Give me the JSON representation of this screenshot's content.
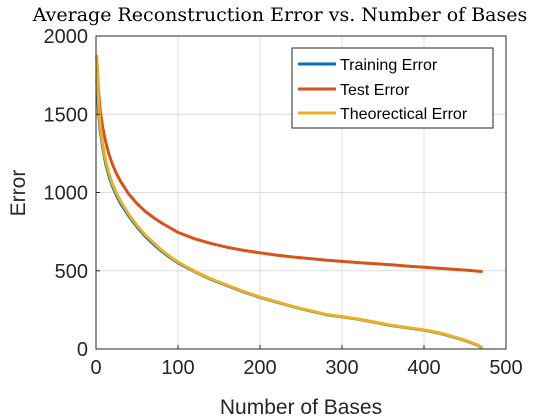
{
  "chart_data": {
    "type": "line",
    "title": "Average Reconstruction Error vs. Number of Bases",
    "xlabel": "Number of Bases",
    "ylabel": "Error",
    "xlim": [
      0,
      500
    ],
    "ylim": [
      0,
      2000
    ],
    "xticks": [
      0,
      100,
      200,
      300,
      400,
      500
    ],
    "yticks": [
      0,
      500,
      1000,
      1500,
      2000
    ],
    "grid": true,
    "legend_position": "top-right",
    "series": [
      {
        "name": "Training Error",
        "color": "#0072BD",
        "x": [
          1,
          3,
          5,
          8,
          12,
          16,
          20,
          25,
          30,
          40,
          50,
          60,
          70,
          80,
          90,
          100,
          120,
          140,
          160,
          180,
          200,
          220,
          240,
          260,
          280,
          300,
          320,
          340,
          360,
          380,
          400,
          420,
          440,
          455,
          465,
          470
        ],
        "y": [
          1720,
          1520,
          1400,
          1290,
          1180,
          1100,
          1040,
          980,
          930,
          850,
          780,
          720,
          670,
          625,
          585,
          550,
          495,
          445,
          405,
          365,
          330,
          300,
          270,
          245,
          220,
          205,
          190,
          170,
          150,
          135,
          120,
          100,
          70,
          45,
          25,
          10
        ]
      },
      {
        "name": "Test Error",
        "color": "#D95319",
        "x": [
          1,
          3,
          5,
          8,
          12,
          16,
          20,
          25,
          30,
          40,
          50,
          60,
          70,
          80,
          90,
          100,
          120,
          140,
          160,
          180,
          200,
          220,
          240,
          260,
          280,
          300,
          320,
          340,
          360,
          380,
          400,
          420,
          440,
          455,
          470
        ],
        "y": [
          1860,
          1650,
          1530,
          1420,
          1320,
          1240,
          1180,
          1120,
          1070,
          990,
          930,
          880,
          840,
          805,
          775,
          745,
          705,
          675,
          650,
          630,
          615,
          600,
          588,
          578,
          568,
          560,
          552,
          545,
          538,
          530,
          523,
          515,
          508,
          502,
          495
        ]
      },
      {
        "name": "Theorectical Error",
        "color": "#EDB120",
        "x": [
          1,
          3,
          5,
          8,
          12,
          16,
          20,
          25,
          30,
          40,
          50,
          60,
          70,
          80,
          90,
          100,
          120,
          140,
          160,
          180,
          200,
          220,
          240,
          260,
          280,
          300,
          320,
          340,
          360,
          380,
          400,
          420,
          440,
          455,
          465,
          470
        ],
        "y": [
          1870,
          1580,
          1430,
          1310,
          1200,
          1120,
          1055,
          995,
          945,
          860,
          790,
          730,
          680,
          632,
          592,
          555,
          498,
          448,
          408,
          368,
          332,
          302,
          272,
          247,
          222,
          207,
          192,
          172,
          152,
          137,
          122,
          102,
          72,
          47,
          27,
          12
        ]
      }
    ]
  }
}
